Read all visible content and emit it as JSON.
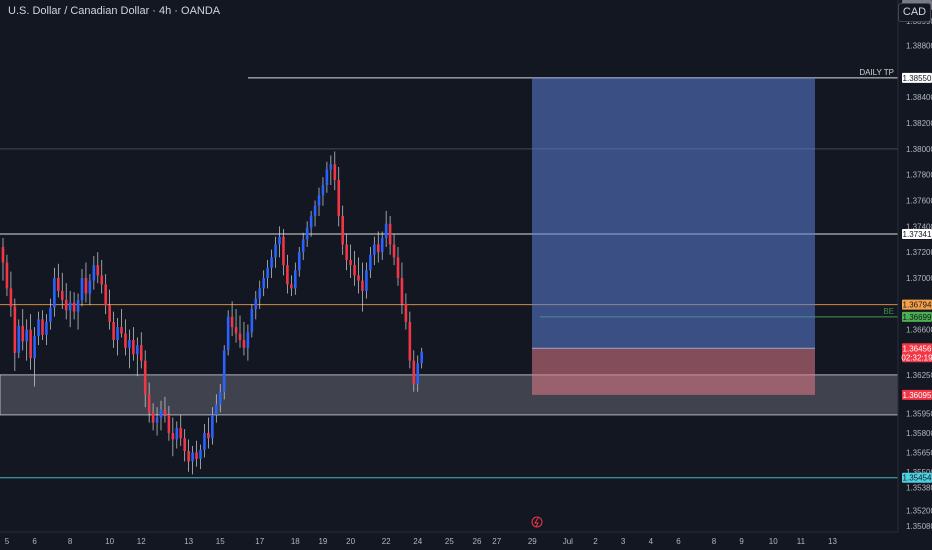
{
  "header": {
    "title": "U.S. Dollar / Canadian Dollar · 4h · OANDA",
    "currency": "CAD"
  },
  "colors": {
    "background": "#131722",
    "bull": "#2962ff",
    "bear": "#f23645",
    "zone": "#787b86",
    "target": "#5b7fd6",
    "stop": "#e07a86",
    "cyan": "#4dd0e1",
    "orange": "#f5a14a",
    "green": "#4caf50"
  },
  "chart_data": {
    "type": "candlestick",
    "symbol": "USDCAD",
    "timeframe": "4h",
    "broker": "OANDA",
    "ylim": [
      1.3502,
      1.3899
    ],
    "y_ticks": [
      "1.38990",
      "1.38800",
      "1.38550",
      "1.38400",
      "1.38200",
      "1.38000",
      "1.37800",
      "1.37600",
      "1.37400",
      "1.37200",
      "1.37000",
      "1.36800",
      "1.36600",
      "1.36250",
      "1.35950",
      "1.35800",
      "1.35650",
      "1.35500",
      "1.35380",
      "1.35200",
      "1.35080"
    ],
    "x_ticks": [
      "5",
      "6",
      "8",
      "10",
      "12",
      "13",
      "15",
      "17",
      "18",
      "19",
      "20",
      "22",
      "24",
      "25",
      "26",
      "27",
      "29",
      "Jul",
      "2",
      "3",
      "4",
      "6",
      "8",
      "9",
      "10",
      "11",
      "13"
    ],
    "x_tick_index": [
      1,
      8,
      17,
      27,
      35,
      47,
      55,
      65,
      74,
      81,
      88,
      97,
      105,
      113,
      120,
      125,
      134,
      143,
      150,
      157,
      164,
      171,
      180,
      187,
      195,
      202,
      210
    ],
    "candles": [
      [
        1.3724,
        1.3731,
        1.3698,
        1.3712
      ],
      [
        1.3712,
        1.3718,
        1.3686,
        1.3692
      ],
      [
        1.3692,
        1.3705,
        1.367,
        1.3678
      ],
      [
        1.3678,
        1.3684,
        1.3628,
        1.3642
      ],
      [
        1.3642,
        1.3668,
        1.3638,
        1.3663
      ],
      [
        1.3663,
        1.3676,
        1.3644,
        1.3651
      ],
      [
        1.3651,
        1.3668,
        1.3636,
        1.366
      ],
      [
        1.366,
        1.3672,
        1.3629,
        1.3638
      ],
      [
        1.3638,
        1.3662,
        1.3616,
        1.3655
      ],
      [
        1.3655,
        1.3674,
        1.3648,
        1.3668
      ],
      [
        1.3668,
        1.3675,
        1.3652,
        1.3656
      ],
      [
        1.3656,
        1.3672,
        1.3648,
        1.3666
      ],
      [
        1.3666,
        1.3684,
        1.366,
        1.3677
      ],
      [
        1.3677,
        1.3708,
        1.367,
        1.37
      ],
      [
        1.37,
        1.3711,
        1.3685,
        1.369
      ],
      [
        1.369,
        1.3704,
        1.3676,
        1.3683
      ],
      [
        1.3683,
        1.3696,
        1.3668,
        1.3675
      ],
      [
        1.3675,
        1.369,
        1.3662,
        1.3681
      ],
      [
        1.3681,
        1.3689,
        1.3668,
        1.3674
      ],
      [
        1.3674,
        1.3688,
        1.366,
        1.3683
      ],
      [
        1.3683,
        1.3707,
        1.3678,
        1.37
      ],
      [
        1.37,
        1.3712,
        1.3681,
        1.3688
      ],
      [
        1.3688,
        1.3703,
        1.3679,
        1.3698
      ],
      [
        1.3698,
        1.3717,
        1.3691,
        1.371
      ],
      [
        1.371,
        1.372,
        1.3696,
        1.3702
      ],
      [
        1.3702,
        1.3714,
        1.3688,
        1.3695
      ],
      [
        1.3695,
        1.3703,
        1.3672,
        1.3679
      ],
      [
        1.3679,
        1.3691,
        1.366,
        1.3666
      ],
      [
        1.3666,
        1.3674,
        1.3646,
        1.3652
      ],
      [
        1.3652,
        1.3669,
        1.364,
        1.3662
      ],
      [
        1.3662,
        1.3676,
        1.3654,
        1.3657
      ],
      [
        1.3657,
        1.3668,
        1.364,
        1.3646
      ],
      [
        1.3646,
        1.366,
        1.363,
        1.3652
      ],
      [
        1.3652,
        1.3662,
        1.3636,
        1.3641
      ],
      [
        1.3641,
        1.3654,
        1.3624,
        1.3648
      ],
      [
        1.3648,
        1.3658,
        1.363,
        1.3636
      ],
      [
        1.3636,
        1.3644,
        1.36,
        1.361
      ],
      [
        1.361,
        1.3619,
        1.3588,
        1.3596
      ],
      [
        1.3596,
        1.3603,
        1.3582,
        1.3588
      ],
      [
        1.3588,
        1.36,
        1.3578,
        1.3592
      ],
      [
        1.3592,
        1.3605,
        1.3582,
        1.3598
      ],
      [
        1.3598,
        1.3608,
        1.3588,
        1.3594
      ],
      [
        1.3594,
        1.3601,
        1.3574,
        1.358
      ],
      [
        1.358,
        1.3592,
        1.3562,
        1.3575
      ],
      [
        1.3575,
        1.3589,
        1.3568,
        1.3584
      ],
      [
        1.3584,
        1.3594,
        1.357,
        1.3576
      ],
      [
        1.3576,
        1.3583,
        1.3558,
        1.3566
      ],
      [
        1.3566,
        1.3575,
        1.355,
        1.3558
      ],
      [
        1.3558,
        1.357,
        1.3548,
        1.3565
      ],
      [
        1.3565,
        1.3574,
        1.3554,
        1.356
      ],
      [
        1.356,
        1.3571,
        1.3552,
        1.3567
      ],
      [
        1.3567,
        1.3587,
        1.3561,
        1.358
      ],
      [
        1.358,
        1.3592,
        1.3568,
        1.3576
      ],
      [
        1.3576,
        1.36,
        1.3571,
        1.3594
      ],
      [
        1.3594,
        1.361,
        1.3588,
        1.3602
      ],
      [
        1.3602,
        1.3618,
        1.3596,
        1.3612
      ],
      [
        1.3612,
        1.3648,
        1.3606,
        1.3644
      ],
      [
        1.3644,
        1.3675,
        1.364,
        1.367
      ],
      [
        1.367,
        1.3682,
        1.3655,
        1.3662
      ],
      [
        1.3662,
        1.3676,
        1.365,
        1.3657
      ],
      [
        1.3657,
        1.3671,
        1.3646,
        1.3652
      ],
      [
        1.3652,
        1.3666,
        1.364,
        1.3646
      ],
      [
        1.3646,
        1.3664,
        1.3636,
        1.3658
      ],
      [
        1.3658,
        1.368,
        1.3654,
        1.3676
      ],
      [
        1.3676,
        1.369,
        1.3668,
        1.3684
      ],
      [
        1.3684,
        1.3698,
        1.3676,
        1.3692
      ],
      [
        1.3692,
        1.3706,
        1.3686,
        1.37
      ],
      [
        1.37,
        1.3714,
        1.3692,
        1.3708
      ],
      [
        1.3708,
        1.3722,
        1.37,
        1.3716
      ],
      [
        1.3716,
        1.3732,
        1.3708,
        1.3726
      ],
      [
        1.3726,
        1.374,
        1.3716,
        1.3732
      ],
      [
        1.3732,
        1.3738,
        1.3702,
        1.371
      ],
      [
        1.371,
        1.3718,
        1.3688,
        1.3695
      ],
      [
        1.3695,
        1.3702,
        1.3686,
        1.3692
      ],
      [
        1.3692,
        1.3712,
        1.3687,
        1.3706
      ],
      [
        1.3706,
        1.3724,
        1.3701,
        1.372
      ],
      [
        1.372,
        1.3735,
        1.3714,
        1.373
      ],
      [
        1.373,
        1.3744,
        1.3724,
        1.3739
      ],
      [
        1.3739,
        1.3752,
        1.3732,
        1.3748
      ],
      [
        1.3748,
        1.376,
        1.374,
        1.3756
      ],
      [
        1.3756,
        1.377,
        1.3748,
        1.3764
      ],
      [
        1.3764,
        1.3778,
        1.3756,
        1.3772
      ],
      [
        1.3772,
        1.379,
        1.3766,
        1.3784
      ],
      [
        1.3784,
        1.3795,
        1.3772,
        1.3788
      ],
      [
        1.3788,
        1.3798,
        1.3768,
        1.3776
      ],
      [
        1.3776,
        1.3786,
        1.374,
        1.3748
      ],
      [
        1.3748,
        1.3756,
        1.3718,
        1.3726
      ],
      [
        1.3726,
        1.3734,
        1.3706,
        1.3714
      ],
      [
        1.3714,
        1.3726,
        1.37,
        1.371
      ],
      [
        1.371,
        1.3721,
        1.3694,
        1.3702
      ],
      [
        1.3702,
        1.3716,
        1.3688,
        1.3698
      ],
      [
        1.3698,
        1.3712,
        1.3674,
        1.369
      ],
      [
        1.369,
        1.3712,
        1.3684,
        1.3706
      ],
      [
        1.3706,
        1.3724,
        1.37,
        1.3718
      ],
      [
        1.3718,
        1.3732,
        1.371,
        1.3726
      ],
      [
        1.3726,
        1.3736,
        1.3712,
        1.372
      ],
      [
        1.372,
        1.3736,
        1.3714,
        1.3731
      ],
      [
        1.3731,
        1.3752,
        1.3724,
        1.3742
      ],
      [
        1.3742,
        1.3748,
        1.3718,
        1.3726
      ],
      [
        1.3726,
        1.3734,
        1.371,
        1.3716
      ],
      [
        1.3716,
        1.3724,
        1.3694,
        1.37
      ],
      [
        1.37,
        1.3712,
        1.3672,
        1.368
      ],
      [
        1.368,
        1.3688,
        1.366,
        1.3666
      ],
      [
        1.3666,
        1.3674,
        1.363,
        1.3636
      ],
      [
        1.3636,
        1.3644,
        1.3612,
        1.3618
      ],
      [
        1.3618,
        1.364,
        1.3612,
        1.3634
      ],
      [
        1.3634,
        1.3646,
        1.363,
        1.3643
      ]
    ],
    "zones": [
      {
        "from": 1.3594,
        "to": 1.3625,
        "color": "#787b86"
      }
    ],
    "levels": [
      {
        "price": 1.3855,
        "label": "1.38550",
        "note": "DAILY TP",
        "color": "#ffffff"
      },
      {
        "price": 1.38,
        "label": "",
        "note": "",
        "color": "#787b86"
      },
      {
        "price": 1.37341,
        "label": "1.37341",
        "note": "",
        "color": "#ffffff"
      },
      {
        "price": 1.36794,
        "label": "1.36794",
        "note": "",
        "color": "#f5a14a"
      },
      {
        "price": 1.36699,
        "label": "1.36699",
        "note": "BE",
        "color": "#4caf50"
      },
      {
        "price": 1.35454,
        "label": "1.35454",
        "note": "",
        "color": "#4dd0e1"
      }
    ],
    "position": {
      "entry": 1.36456,
      "target": 1.3855,
      "stop": 1.36095,
      "entry_label": "1.36456",
      "entry_time": "02:32:19",
      "stop_label": "1.36095",
      "current_label": "1.36425"
    }
  }
}
